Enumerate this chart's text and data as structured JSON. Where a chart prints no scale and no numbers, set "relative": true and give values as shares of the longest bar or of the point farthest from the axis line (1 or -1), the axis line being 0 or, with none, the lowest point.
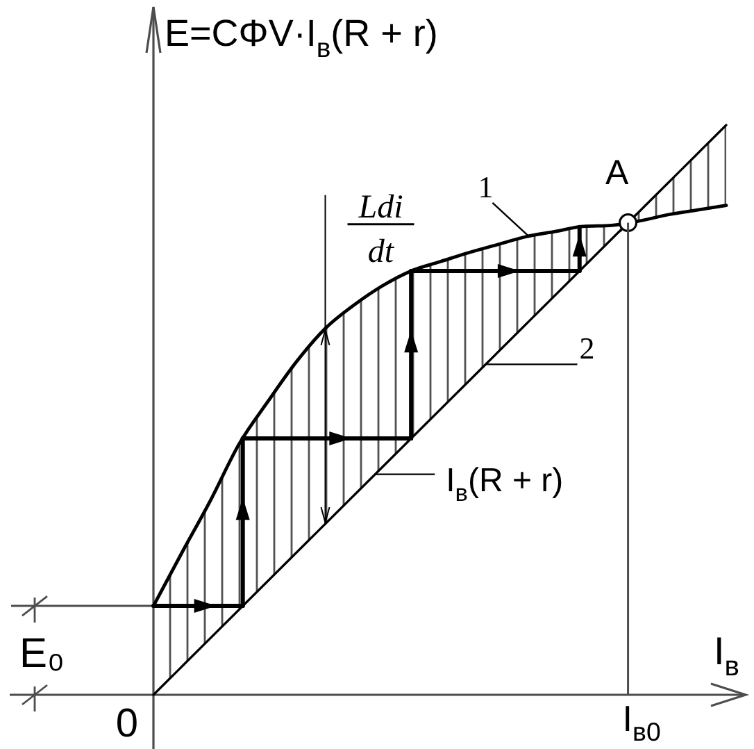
{
  "chart_data": {
    "type": "line",
    "relative": true,
    "ylabel": "E=CΦV·I$_{в}$(R + r)",
    "xlabel": "I$_{в}$",
    "categories": [
      null,
      null,
      null,
      null,
      null,
      null,
      null,
      null,
      null,
      null,
      null,
      null,
      null,
      null,
      null,
      null,
      null,
      null,
      null,
      null,
      null
    ],
    "series": [
      {
        "name": "1",
        "color": "#000000",
        "values": [
          0.156,
          0.25,
          0.342,
          0.441,
          0.515,
          0.585,
          0.643,
          0.684,
          0.718,
          0.744,
          0.76,
          0.776,
          0.79,
          0.804,
          0.813,
          0.822,
          0.824,
          0.832,
          0.843,
          0.851,
          0.859
        ],
        "lower": [
          0,
          0.05,
          0.1,
          0.15,
          0.2,
          0.25,
          0.3,
          0.35,
          0.4,
          0.45,
          0.5,
          0.55,
          0.6,
          0.65,
          0.7,
          0.75,
          0.8,
          0.832,
          0.843,
          0.851,
          0.859
        ],
        "upper": [
          0.156,
          0.25,
          0.342,
          0.441,
          0.515,
          0.585,
          0.643,
          0.684,
          0.718,
          0.744,
          0.76,
          0.776,
          0.79,
          0.804,
          0.813,
          0.822,
          0.824,
          0.85,
          0.9,
          0.95,
          1
        ]
      },
      {
        "name": "2",
        "color": "#000000",
        "values": [
          0,
          0.05,
          0.1,
          0.15,
          0.2,
          0.25,
          0.3,
          0.35,
          0.4,
          0.45,
          0.5,
          0.55,
          0.6,
          0.65,
          0.7,
          0.75,
          0.8,
          0.85,
          0.9,
          0.95,
          1
        ]
      }
    ],
    "ref_lines": [
      {
        "axis": "y",
        "value": 0.156,
        "label": "E₀"
      }
    ],
    "annotations": [
      "A",
      "Ldi",
      "dt",
      "I$_{в}$(R + r)",
      "0",
      "I$_{в0}$"
    ]
  }
}
